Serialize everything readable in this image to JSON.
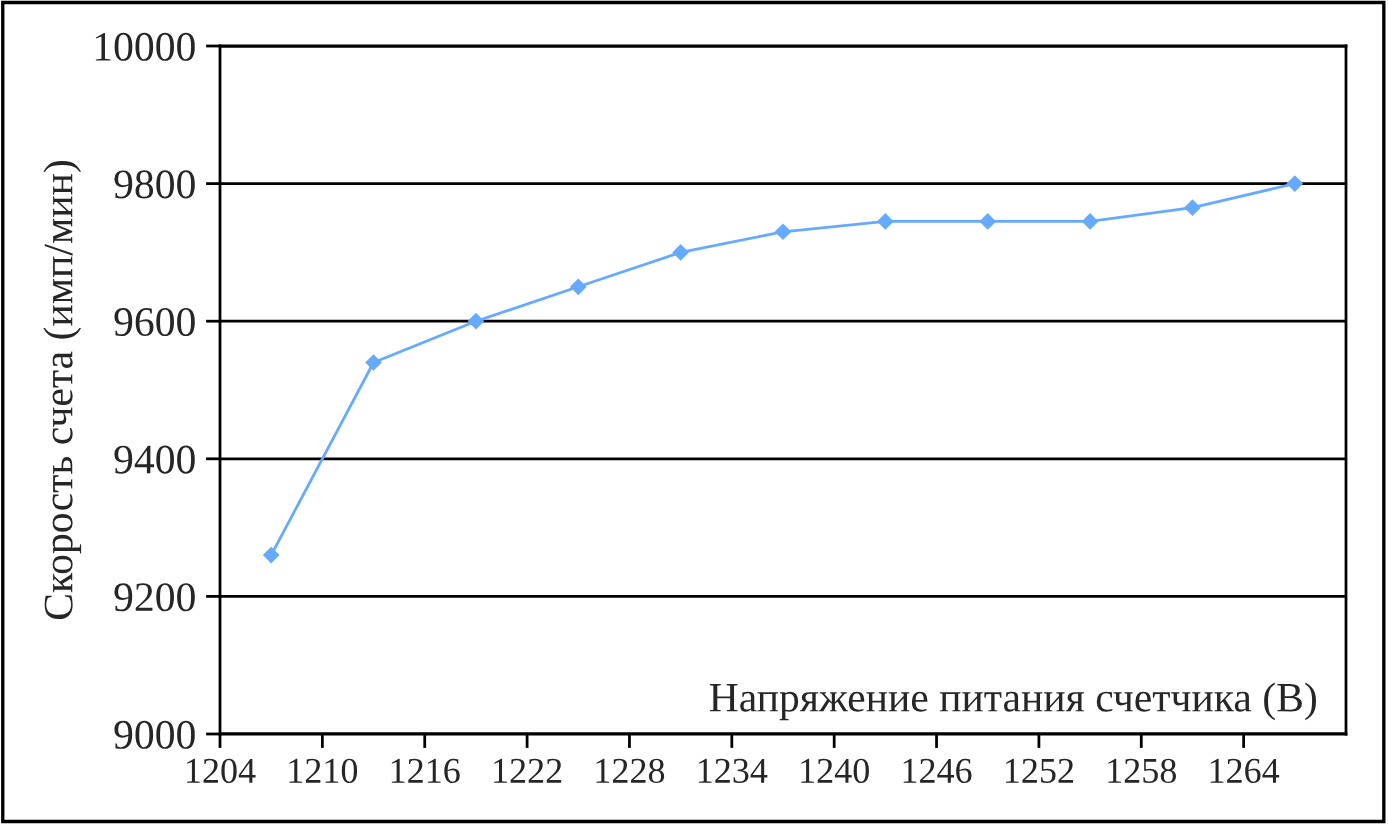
{
  "chart_data": {
    "type": "line",
    "xlabel": "Напряжение питания счетчика (В)",
    "ylabel": "Скорость счета (имп/мин)",
    "x": [
      1207,
      1213,
      1219,
      1225,
      1231,
      1237,
      1243,
      1249,
      1255,
      1261,
      1267
    ],
    "series": [
      {
        "color": "#66aaff",
        "values": [
          9260,
          9540,
          9600,
          9650,
          9700,
          9730,
          9745,
          9745,
          9745,
          9765,
          9800
        ]
      }
    ],
    "xlim": [
      1204,
      1270
    ],
    "xticks": [
      1204,
      1210,
      1216,
      1222,
      1228,
      1234,
      1240,
      1246,
      1252,
      1258,
      1264
    ],
    "ylim": [
      9000,
      10000
    ],
    "yticks": [
      9000,
      9200,
      9400,
      9600,
      9800,
      10000
    ],
    "grid": "y",
    "marker": "diamond",
    "line_style": "solid"
  }
}
